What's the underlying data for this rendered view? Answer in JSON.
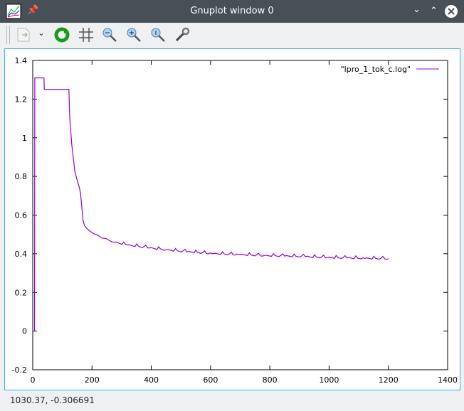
{
  "window": {
    "title": "Gnuplot window 0"
  },
  "toolbar": {
    "items": [
      "export-icon",
      "dropdown-icon",
      "replot-icon",
      "grid-icon",
      "zoom-out-icon",
      "zoom-in-icon",
      "zoom-reset-icon",
      "settings-icon"
    ]
  },
  "status": {
    "coordinates": "1030.37, -0.306691"
  },
  "chart_data": {
    "type": "line",
    "title": "",
    "xlabel": "",
    "ylabel": "",
    "xlim": [
      0,
      1400
    ],
    "ylim": [
      -0.2,
      1.4
    ],
    "xticks": [
      0,
      200,
      400,
      600,
      800,
      1000,
      1200,
      1400
    ],
    "yticks": [
      -0.2,
      0,
      0.2,
      0.4,
      0.6,
      0.8,
      1,
      1.2,
      1.4
    ],
    "legend": "top-right",
    "series": [
      {
        "name": "\"lpro_1_tok_c.log\"",
        "color": "#9400d3",
        "x": [
          0,
          6,
          7,
          20,
          38,
          39,
          60,
          80,
          122,
          125,
          132,
          142,
          150,
          156,
          161,
          165,
          170,
          175,
          183,
          195,
          210,
          240,
          275,
          320,
          394,
          450,
          520,
          610,
          700,
          780,
          850,
          920,
          994,
          1060,
          1120,
          1200
        ],
        "y": [
          0,
          0,
          1.31,
          1.31,
          1.31,
          1.25,
          1.25,
          1.25,
          1.25,
          1.1,
          0.96,
          0.826,
          0.78,
          0.75,
          0.716,
          0.65,
          0.57,
          0.545,
          0.53,
          0.515,
          0.5,
          0.48,
          0.46,
          0.445,
          0.43,
          0.42,
          0.41,
          0.4,
          0.395,
          0.39,
          0.388,
          0.385,
          0.38,
          0.378,
          0.376,
          0.374
        ]
      }
    ]
  }
}
